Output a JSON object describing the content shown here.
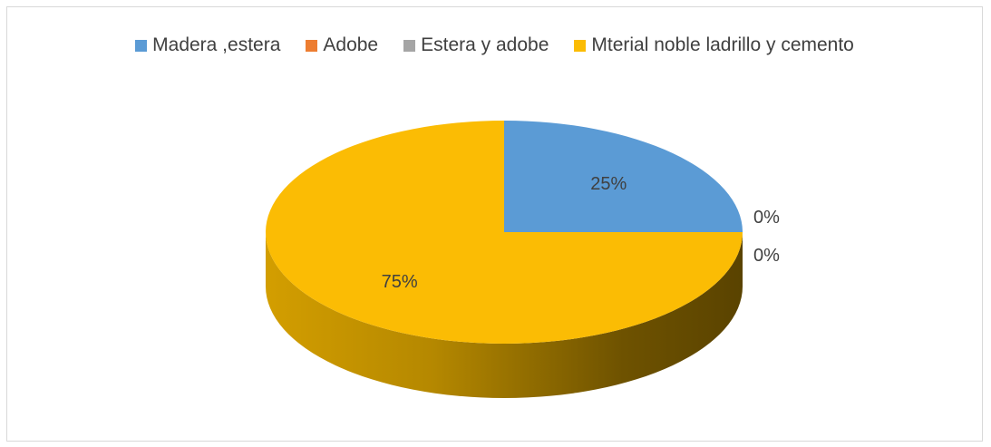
{
  "chart_data": {
    "type": "pie",
    "title": "",
    "style": "3d",
    "legend_position": "top",
    "slices": [
      {
        "label": "Madera ,estera",
        "value": 25,
        "display": "25%",
        "color": "#5b9bd5"
      },
      {
        "label": "Adobe",
        "value": 0,
        "display": "0%",
        "color": "#ed7d31"
      },
      {
        "label": "Estera y adobe",
        "value": 0,
        "display": "0%",
        "color": "#a5a5a5"
      },
      {
        "label": "Mterial noble ladrillo y cemento",
        "value": 75,
        "display": "75%",
        "color": "#fbbc04"
      }
    ]
  }
}
